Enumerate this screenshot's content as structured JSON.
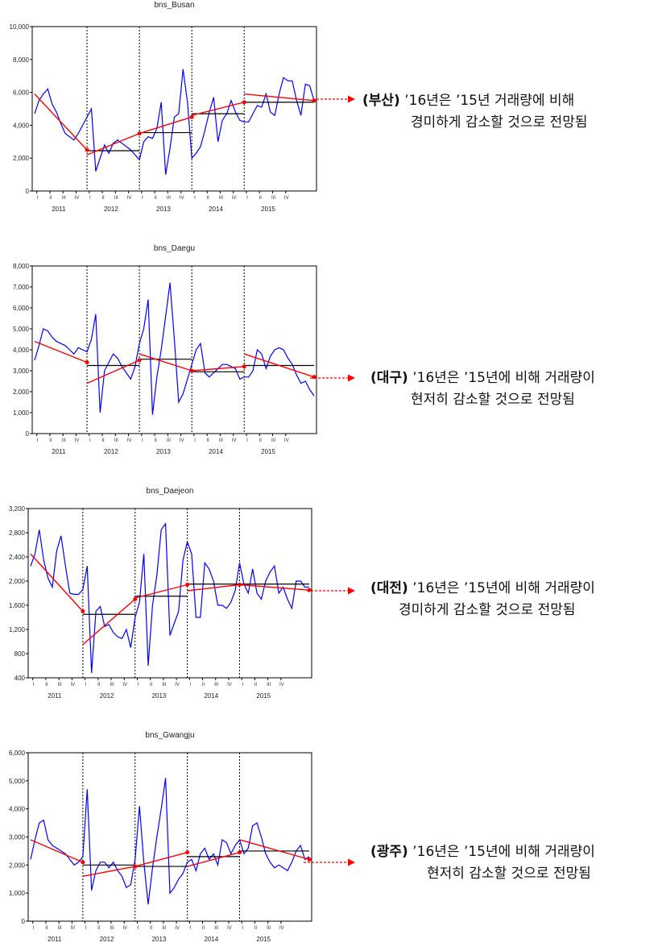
{
  "chart_data": [
    {
      "type": "line",
      "title": "bns_Busan",
      "ylim": [
        0,
        10000
      ],
      "yticks": [
        "0",
        "2,000",
        "4,000",
        "6,000",
        "8,000",
        "10,000"
      ],
      "years": [
        "2011",
        "2012",
        "2013",
        "2014",
        "2015"
      ],
      "quarters": [
        "I",
        "II",
        "III",
        "IV"
      ],
      "series": [
        {
          "values": [
            4700,
            5500,
            5900,
            6200,
            5300,
            4800,
            4100,
            3500,
            3300,
            3100,
            3500,
            4000,
            4500,
            5000,
            1200,
            2000,
            2800,
            2300,
            2900,
            3100,
            2900,
            2700,
            2500,
            2200,
            1900,
            3000,
            3300,
            3200,
            3800,
            5400,
            1000,
            2600,
            4500,
            4700,
            7400,
            5400,
            2000,
            2300,
            2700,
            3700,
            4800,
            5700,
            3000,
            4300,
            4700,
            5500,
            4800,
            4300,
            4200,
            4200,
            4700,
            5200,
            5100,
            5900,
            4800,
            4600,
            5900,
            6900,
            6700,
            6700,
            5500,
            4600,
            6500,
            6400,
            5500
          ]
        },
        {
          "segments": [
            [
              [
                0,
                5900
              ],
              [
                12,
                2500
              ]
            ],
            [
              [
                12,
                2200
              ],
              [
                24,
                3500
              ]
            ],
            [
              [
                24,
                3500
              ],
              [
                36,
                4500
              ]
            ],
            [
              [
                36,
                4600
              ],
              [
                48,
                5400
              ]
            ],
            [
              [
                48,
                5900
              ],
              [
                64,
                5500
              ]
            ]
          ]
        },
        {
          "steps": [
            [
              12,
              24,
              2450
            ],
            [
              24,
              36,
              3550
            ],
            [
              36,
              48,
              4700
            ],
            [
              48,
              64,
              5400
            ]
          ]
        }
      ],
      "annotation": {
        "city": "(부산)",
        "line1": " ’16년은 ’15년 거래량에 비해",
        "line2": "경미하게 감소할 것으로 전망됨"
      }
    },
    {
      "type": "line",
      "title": "bns_Daegu",
      "ylim": [
        0,
        8000
      ],
      "yticks": [
        "0",
        "1,000",
        "2,000",
        "3,000",
        "4,000",
        "5,000",
        "6,000",
        "7,000",
        "8,000"
      ],
      "years": [
        "2011",
        "2012",
        "2013",
        "2014",
        "2015"
      ],
      "quarters": [
        "I",
        "II",
        "III",
        "IV"
      ],
      "series": [
        {
          "values": [
            3500,
            4200,
            5000,
            4900,
            4600,
            4400,
            4300,
            4200,
            4000,
            3800,
            4100,
            4000,
            3900,
            4500,
            5700,
            1000,
            3000,
            3400,
            3800,
            3600,
            3200,
            2900,
            2600,
            3200,
            4300,
            5000,
            6400,
            900,
            2700,
            4000,
            5600,
            7200,
            4500,
            1500,
            1900,
            2600,
            3300,
            4000,
            4300,
            2900,
            2700,
            2900,
            3100,
            3300,
            3300,
            3200,
            3100,
            2600,
            2700,
            2700,
            3000,
            4000,
            3800,
            3100,
            3700,
            4000,
            4100,
            4000,
            3600,
            3300,
            2800,
            2400,
            2500,
            2100,
            1800
          ]
        },
        {
          "segments": [
            [
              [
                0,
                4400
              ],
              [
                12,
                3400
              ]
            ],
            [
              [
                12,
                2400
              ],
              [
                24,
                3500
              ]
            ],
            [
              [
                24,
                3800
              ],
              [
                36,
                3000
              ]
            ],
            [
              [
                36,
                3000
              ],
              [
                48,
                3200
              ]
            ],
            [
              [
                48,
                3800
              ],
              [
                64,
                2700
              ]
            ]
          ]
        },
        {
          "steps": [
            [
              12,
              24,
              3250
            ],
            [
              24,
              36,
              3550
            ],
            [
              36,
              48,
              2950
            ],
            [
              48,
              64,
              3250
            ]
          ]
        }
      ],
      "annotation": {
        "city": "(대구)",
        "line1": " ’16년은 ’15년에 비해 거래량이",
        "line2": "현저히 감소할 것으로 전망됨"
      }
    },
    {
      "type": "line",
      "title": "bns_Daejeon",
      "ylim": [
        400,
        3200
      ],
      "yticks": [
        "400",
        "800",
        "1,200",
        "1,600",
        "2,000",
        "2,400",
        "2,800",
        "3,200"
      ],
      "years": [
        "2011",
        "2012",
        "2013",
        "2014",
        "2015"
      ],
      "quarters": [
        "I",
        "II",
        "III",
        "IV"
      ],
      "series": [
        {
          "values": [
            2250,
            2450,
            2850,
            2350,
            2050,
            1900,
            2500,
            2750,
            2250,
            1800,
            1780,
            1780,
            1860,
            2250,
            480,
            1500,
            1580,
            1250,
            1280,
            1150,
            1080,
            1050,
            1200,
            900,
            1400,
            1650,
            2450,
            600,
            1600,
            2100,
            2850,
            2950,
            1100,
            1300,
            1500,
            2350,
            2650,
            2450,
            1400,
            1400,
            2300,
            2200,
            2000,
            1600,
            1600,
            1550,
            1650,
            1850,
            2300,
            1950,
            1800,
            2200,
            1800,
            1700,
            2000,
            2150,
            2250,
            1800,
            1900,
            1700,
            1550,
            2000,
            2000,
            1900,
            1900
          ]
        },
        {
          "segments": [
            [
              [
                0,
                2450
              ],
              [
                12,
                1500
              ]
            ],
            [
              [
                12,
                950
              ],
              [
                24,
                1700
              ]
            ],
            [
              [
                24,
                1720
              ],
              [
                36,
                1940
              ]
            ],
            [
              [
                36,
                1840
              ],
              [
                48,
                1940
              ]
            ],
            [
              [
                48,
                1940
              ],
              [
                64,
                1850
              ]
            ]
          ]
        },
        {
          "steps": [
            [
              12,
              24,
              1450
            ],
            [
              24,
              36,
              1750
            ],
            [
              36,
              48,
              1950
            ],
            [
              48,
              64,
              1950
            ]
          ]
        }
      ],
      "annotation": {
        "city": "(대전)",
        "line1": " ’16년은 ’15년에 비해 거래량이",
        "line2": "경미하게 감소할 것으로 전망됨"
      }
    },
    {
      "type": "line",
      "title": "bns_Gwangju",
      "ylim": [
        0,
        6000
      ],
      "yticks": [
        "0",
        "1,000",
        "2,000",
        "3,000",
        "4,000",
        "5,000",
        "6,000"
      ],
      "years": [
        "2011",
        "2012",
        "2013",
        "2014",
        "2015"
      ],
      "quarters": [
        "I",
        "II",
        "III",
        "IV"
      ],
      "series": [
        {
          "values": [
            2200,
            2900,
            3500,
            3600,
            2900,
            2700,
            2600,
            2500,
            2400,
            2200,
            2000,
            2100,
            2300,
            4700,
            1100,
            1800,
            2100,
            2100,
            1900,
            2100,
            1800,
            1600,
            1200,
            1300,
            2200,
            4100,
            2100,
            600,
            1900,
            3000,
            4000,
            5100,
            1000,
            1200,
            1500,
            1700,
            2100,
            2200,
            1800,
            2400,
            2600,
            2200,
            2400,
            2000,
            2900,
            2800,
            2400,
            2700,
            2900,
            2400,
            2600,
            3400,
            3500,
            3000,
            2400,
            2100,
            1900,
            2000,
            1900,
            1800,
            2100,
            2500,
            2700,
            2200,
            2300
          ]
        },
        {
          "segments": [
            [
              [
                0,
                2900
              ],
              [
                12,
                2100
              ]
            ],
            [
              [
                12,
                1600
              ],
              [
                24,
                1950
              ]
            ],
            [
              [
                24,
                1950
              ],
              [
                36,
                2450
              ]
            ],
            [
              [
                36,
                1950
              ],
              [
                48,
                2450
              ]
            ],
            [
              [
                48,
                2900
              ],
              [
                64,
                2200
              ]
            ]
          ]
        },
        {
          "steps": [
            [
              12,
              24,
              2000
            ],
            [
              24,
              36,
              1950
            ],
            [
              36,
              48,
              2300
            ],
            [
              48,
              64,
              2500
            ]
          ]
        }
      ],
      "annotation": {
        "city": "(광주)",
        "line1": " ’16년은 ’15년에 비해 거래량이",
        "line2": "현저히 감소할 것으로 전망됨"
      }
    }
  ],
  "colors": {
    "data": "#0000ff",
    "trend": "#ff0000",
    "mean": "#000000",
    "arrow": "#ff0000",
    "frame": "#000000"
  }
}
